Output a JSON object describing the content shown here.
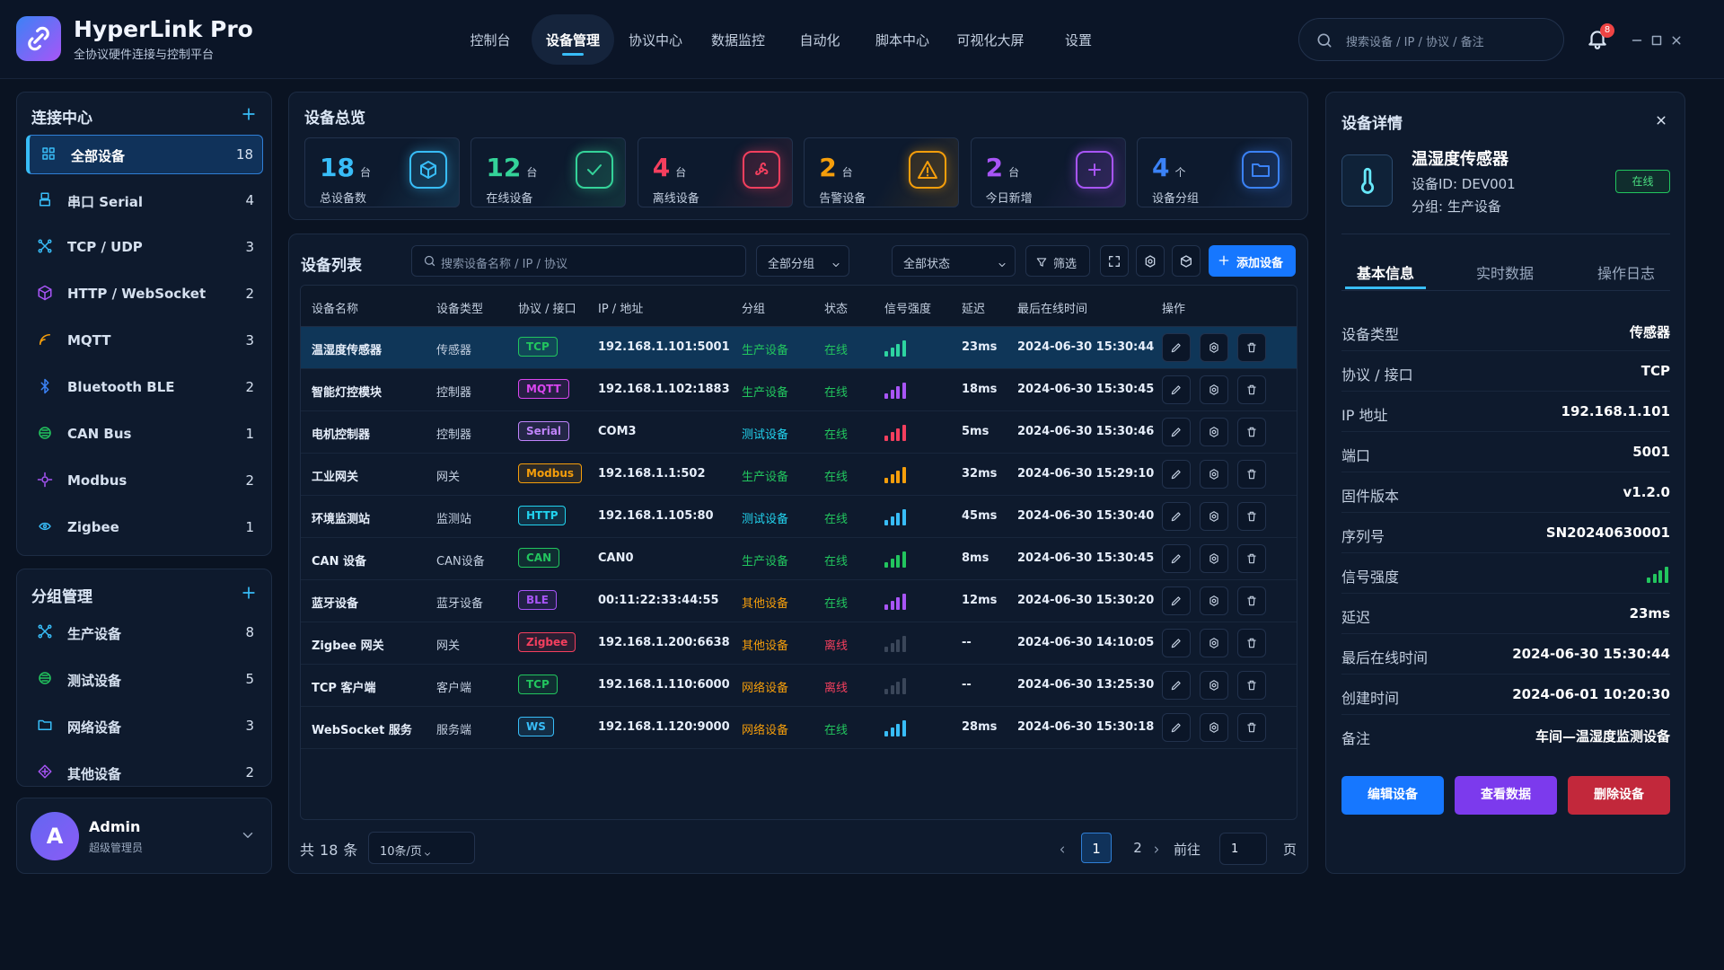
{
  "app": {
    "name": "HyperLink Pro",
    "subtitle": "全协议硬件连接与控制平台"
  },
  "nav": {
    "items": [
      "控制台",
      "设备管理",
      "协议中心",
      "数据监控",
      "自动化",
      "脚本中心",
      "可视化大屏",
      "设置"
    ],
    "active": 1
  },
  "search": {
    "placeholder": "搜索设备 / IP / 协议 / 备注"
  },
  "notifications": {
    "count": 8
  },
  "sidebar": {
    "connections": {
      "title": "连接中心",
      "active": 0,
      "items": [
        {
          "label": "全部设备",
          "count": 18
        },
        {
          "label": "串口 Serial",
          "count": 4
        },
        {
          "label": "TCP / UDP",
          "count": 3
        },
        {
          "label": "HTTP / WebSocket",
          "count": 2
        },
        {
          "label": "MQTT",
          "count": 3
        },
        {
          "label": "Bluetooth BLE",
          "count": 2
        },
        {
          "label": "CAN Bus",
          "count": 1
        },
        {
          "label": "Modbus",
          "count": 2
        },
        {
          "label": "Zigbee",
          "count": 1
        }
      ]
    },
    "groups": {
      "title": "分组管理",
      "items": [
        {
          "label": "生产设备",
          "count": 8
        },
        {
          "label": "测试设备",
          "count": 5
        },
        {
          "label": "网络设备",
          "count": 3
        },
        {
          "label": "其他设备",
          "count": 2
        }
      ]
    },
    "user": {
      "avatar": "A",
      "name": "Admin",
      "role": "超级管理员"
    }
  },
  "overview": {
    "title": "设备总览",
    "stats": [
      {
        "value": 18,
        "unit": "台",
        "label": "总设备数",
        "color": "#38bdf8"
      },
      {
        "value": 12,
        "unit": "台",
        "label": "在线设备",
        "color": "#34d399"
      },
      {
        "value": 4,
        "unit": "台",
        "label": "离线设备",
        "color": "#f43f5e"
      },
      {
        "value": 2,
        "unit": "台",
        "label": "告警设备",
        "color": "#f59e0b"
      },
      {
        "value": 2,
        "unit": "台",
        "label": "今日新增",
        "color": "#a855f7"
      },
      {
        "value": 4,
        "unit": "个",
        "label": "设备分组",
        "color": "#3b82f6"
      }
    ]
  },
  "device_list": {
    "title": "设备列表",
    "search_placeholder": "搜索设备名称 / IP / 协议",
    "group_filter": "全部分组",
    "status_filter": "全部状态",
    "filter_button": "筛选",
    "add_button": "添加设备",
    "columns": [
      "设备名称",
      "设备类型",
      "协议 / 接口",
      "IP / 地址",
      "分组",
      "状态",
      "信号强度",
      "延迟",
      "最后在线时间",
      "操作"
    ],
    "selected": 0,
    "rows": [
      {
        "name": "温湿度传感器",
        "type": "传感器",
        "protocol": "TCP",
        "protocol_color": "#22c55e",
        "address": "192.168.1.101:5001",
        "group": "生产设备",
        "group_color": "#22c55e",
        "status": "在线",
        "status_color": "#22c55e",
        "signal": 4,
        "signal_color": "#2dd4a0",
        "latency": "23ms",
        "last_online": "2024-06-30 15:30:44"
      },
      {
        "name": "智能灯控模块",
        "type": "控制器",
        "protocol": "MQTT",
        "protocol_color": "#d946ef",
        "address": "192.168.1.102:1883",
        "group": "生产设备",
        "group_color": "#22c55e",
        "status": "在线",
        "status_color": "#22c55e",
        "signal": 4,
        "signal_color": "#a855f7",
        "latency": "18ms",
        "last_online": "2024-06-30 15:30:45"
      },
      {
        "name": "电机控制器",
        "type": "控制器",
        "protocol": "Serial",
        "protocol_color": "#c084fc",
        "address": "COM3",
        "group": "测试设备",
        "group_color": "#22d3ee",
        "status": "在线",
        "status_color": "#22c55e",
        "signal": 4,
        "signal_color": "#f43f5e",
        "latency": "5ms",
        "last_online": "2024-06-30 15:30:46"
      },
      {
        "name": "工业网关",
        "type": "网关",
        "protocol": "Modbus",
        "protocol_color": "#f59e0b",
        "address": "192.168.1.1:502",
        "group": "生产设备",
        "group_color": "#22c55e",
        "status": "在线",
        "status_color": "#22c55e",
        "signal": 4,
        "signal_color": "#f59e0b",
        "latency": "32ms",
        "last_online": "2024-06-30 15:29:10"
      },
      {
        "name": "环境监测站",
        "type": "监测站",
        "protocol": "HTTP",
        "protocol_color": "#22d3ee",
        "address": "192.168.1.105:80",
        "group": "测试设备",
        "group_color": "#22d3ee",
        "status": "在线",
        "status_color": "#22c55e",
        "signal": 4,
        "signal_color": "#38bdf8",
        "latency": "45ms",
        "last_online": "2024-06-30 15:30:40"
      },
      {
        "name": "CAN 设备",
        "type": "CAN设备",
        "protocol": "CAN",
        "protocol_color": "#22c55e",
        "address": "CAN0",
        "group": "生产设备",
        "group_color": "#22c55e",
        "status": "在线",
        "status_color": "#22c55e",
        "signal": 4,
        "signal_color": "#22c55e",
        "latency": "8ms",
        "last_online": "2024-06-30 15:30:45"
      },
      {
        "name": "蓝牙设备",
        "type": "蓝牙设备",
        "protocol": "BLE",
        "protocol_color": "#a855f7",
        "address": "00:11:22:33:44:55",
        "group": "其他设备",
        "group_color": "#f59e0b",
        "status": "在线",
        "status_color": "#22c55e",
        "signal": 4,
        "signal_color": "#a855f7",
        "latency": "12ms",
        "last_online": "2024-06-30 15:30:20"
      },
      {
        "name": "Zigbee 网关",
        "type": "网关",
        "protocol": "Zigbee",
        "protocol_color": "#f43f5e",
        "address": "192.168.1.200:6638",
        "group": "其他设备",
        "group_color": "#f59e0b",
        "status": "离线",
        "status_color": "#f43f5e",
        "signal": 0,
        "signal_color": "#4b5563",
        "latency": "--",
        "last_online": "2024-06-30 14:10:05"
      },
      {
        "name": "TCP 客户端",
        "type": "客户端",
        "protocol": "TCP",
        "protocol_color": "#22c55e",
        "address": "192.168.1.110:6000",
        "group": "网络设备",
        "group_color": "#f59e0b",
        "status": "离线",
        "status_color": "#f43f5e",
        "signal": 0,
        "signal_color": "#4b5563",
        "latency": "--",
        "last_online": "2024-06-30 13:25:30"
      },
      {
        "name": "WebSocket 服务",
        "type": "服务端",
        "protocol": "WS",
        "protocol_color": "#38bdf8",
        "address": "192.168.1.120:9000",
        "group": "网络设备",
        "group_color": "#f59e0b",
        "status": "在线",
        "status_color": "#22c55e",
        "signal": 4,
        "signal_color": "#38bdf8",
        "latency": "28ms",
        "last_online": "2024-06-30 15:30:18"
      }
    ],
    "pagination": {
      "total_prefix": "共",
      "total": 18,
      "total_suffix": "条",
      "page_size": "10条/页",
      "pages": [
        1,
        2
      ],
      "current": 0,
      "goto_label": "前往",
      "goto_value": 1,
      "goto_suffix": "页"
    }
  },
  "details": {
    "title": "设备详情",
    "name": "温湿度传感器",
    "id": "设备ID: DEV001",
    "group": "分组: 生产设备",
    "status": "在线",
    "tabs": [
      "基本信息",
      "实时数据",
      "操作日志"
    ],
    "active_tab": 0,
    "fields": [
      {
        "label": "设备类型",
        "value": "传感器"
      },
      {
        "label": "协议 / 接口",
        "value": "TCP"
      },
      {
        "label": "IP 地址",
        "value": "192.168.1.101"
      },
      {
        "label": "端口",
        "value": "5001"
      },
      {
        "label": "固件版本",
        "value": "v1.2.0"
      },
      {
        "label": "序列号",
        "value": "SN20240630001"
      },
      {
        "label": "信号强度",
        "signal": 4,
        "signal_color": "#22c55e"
      },
      {
        "label": "延迟",
        "value": "23ms"
      },
      {
        "label": "最后在线时间",
        "value": "2024-06-30 15:30:44"
      },
      {
        "label": "创建时间",
        "value": "2024-06-01 10:20:30"
      },
      {
        "label": "备注",
        "value": "车间—温湿度监测设备"
      }
    ],
    "buttons": [
      {
        "label": "编辑设备",
        "color": "#1677ff"
      },
      {
        "label": "查看数据",
        "color": "#7c3aed"
      },
      {
        "label": "删除设备",
        "color": "#c2283b"
      }
    ]
  }
}
